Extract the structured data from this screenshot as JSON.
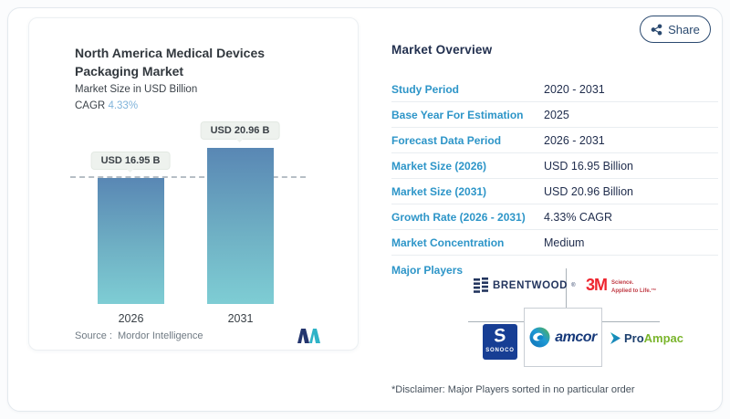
{
  "share": {
    "label": "Share"
  },
  "chart_panel": {
    "title": "North America Medical Devices Packaging Market",
    "subtitle": "Market Size in USD Billion",
    "cagr_label": "CAGR",
    "cagr_value": "4.33%",
    "source_label": "Source :",
    "source_value": "Mordor Intelligence"
  },
  "chart_data": {
    "type": "bar",
    "title": "North America Medical Devices Packaging Market",
    "ylabel": "Market Size in USD Billion",
    "categories": [
      "2026",
      "2031"
    ],
    "values": [
      16.95,
      20.96
    ],
    "unit": "USD Billion",
    "bar_labels": [
      "USD 16.95 B",
      "USD 20.96 B"
    ],
    "cagr": "4.33%",
    "reference_line": 16.95,
    "grid": false,
    "bar_gradient_top": "#5987b4",
    "bar_gradient_bottom": "#7ecdd4"
  },
  "overview": {
    "heading": "Market Overview",
    "rows": [
      {
        "label": "Study Period",
        "value": "2020 - 2031"
      },
      {
        "label": "Base Year For Estimation",
        "value": "2025"
      },
      {
        "label": "Forecast Data Period",
        "value": "2026 - 2031"
      },
      {
        "label": "Market Size (2026)",
        "value": "USD 16.95 Billion"
      },
      {
        "label": "Market Size (2031)",
        "value": "USD 20.96 Billion"
      },
      {
        "label": "Growth Rate (2026 - 2031)",
        "value": "4.33% CAGR"
      },
      {
        "label": "Market Concentration",
        "value": "Medium"
      }
    ],
    "major_players_label": "Major Players",
    "players": [
      {
        "name": "Brentwood",
        "text": "BRENTWOOD",
        "mark": "®"
      },
      {
        "name": "3M",
        "text": "3M",
        "tagline1": "Science.",
        "tagline2": "Applied to Life.™"
      },
      {
        "name": "Sonoco",
        "initial": "S",
        "text": "SONOCO"
      },
      {
        "name": "Amcor",
        "text": "amcor"
      },
      {
        "name": "ProAmpac",
        "text_pro": "Pro",
        "text_ampac": "Ampac"
      }
    ],
    "disclaimer": "*Disclaimer: Major Players sorted in no particular order"
  },
  "colors": {
    "label_blue": "#2d95c8",
    "value_navy": "#1f2c4c",
    "cagr_blue": "#7fb3da",
    "share_navy": "#2b4a70",
    "threem_red": "#ee2630",
    "proampac_green": "#7ab52c",
    "sonoco_blue": "#173e94",
    "dash_gray": "#b6bec5"
  }
}
